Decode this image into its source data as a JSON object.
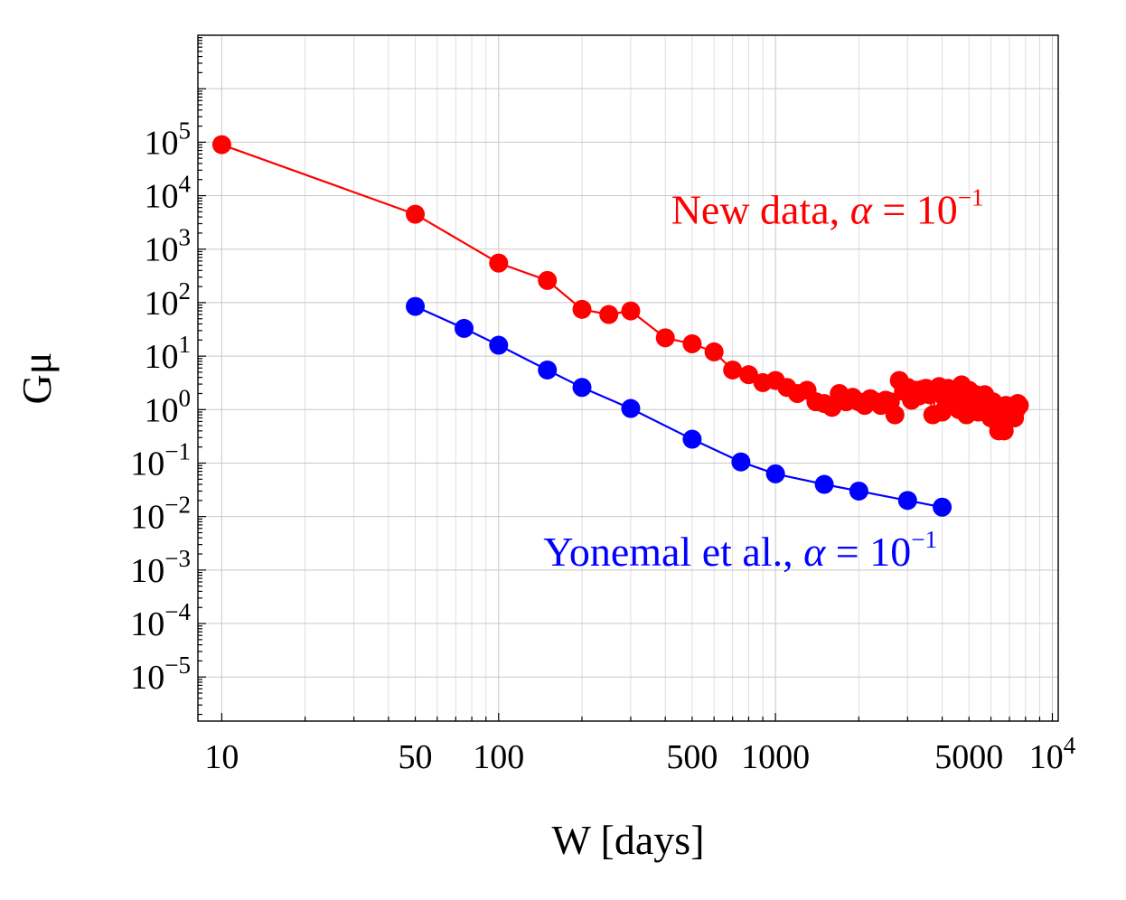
{
  "chart_data": {
    "type": "scatter",
    "title": "",
    "xlabel": "W [days]",
    "ylabel": "Gμ",
    "xscale": "log",
    "yscale": "log",
    "xlim": [
      8.2,
      10500
    ],
    "ylim": [
      1.5e-06,
      10000000
    ],
    "grid": true,
    "x_ticks": [
      {
        "value": 10,
        "label": "10"
      },
      {
        "value": 50,
        "label": "50"
      },
      {
        "value": 100,
        "label": "100"
      },
      {
        "value": 500,
        "label": "500"
      },
      {
        "value": 1000,
        "label": "1000"
      },
      {
        "value": 5000,
        "label": "5000"
      },
      {
        "value": 10000,
        "label": "10",
        "sup": "4"
      }
    ],
    "y_ticks": [
      {
        "value": 100000,
        "label": "10",
        "sup": "5"
      },
      {
        "value": 10000,
        "label": "10",
        "sup": "4"
      },
      {
        "value": 1000,
        "label": "10",
        "sup": "3"
      },
      {
        "value": 100,
        "label": "10",
        "sup": "2"
      },
      {
        "value": 10,
        "label": "10",
        "sup": "1"
      },
      {
        "value": 1,
        "label": "10",
        "sup": "0"
      },
      {
        "value": 0.1,
        "label": "10",
        "sup": "−1"
      },
      {
        "value": 0.01,
        "label": "10",
        "sup": "−2"
      },
      {
        "value": 0.001,
        "label": "10",
        "sup": "−3"
      },
      {
        "value": 0.0001,
        "label": "10",
        "sup": "−4"
      },
      {
        "value": 1e-05,
        "label": "10",
        "sup": "−5"
      }
    ],
    "series": [
      {
        "name": "New data",
        "color": "#ff0000",
        "annotation": {
          "text": "New data, ",
          "symbol": "α",
          "eq": " = 10",
          "sup": "−1",
          "anchor_x": 420,
          "anchor_y": 3000
        },
        "x": [
          10,
          50,
          100,
          150,
          200,
          250,
          300,
          400,
          500,
          600,
          700,
          800,
          900,
          1000,
          1100,
          1200,
          1300,
          1400,
          1500,
          1600,
          1700,
          1800,
          1900,
          2000,
          2100,
          2200,
          2300,
          2400,
          2500,
          2600,
          2700,
          2800,
          2900,
          3000,
          3100,
          3200,
          3300,
          3400,
          3500,
          3600,
          3700,
          3800,
          3900,
          4000,
          4100,
          4200,
          4300,
          4400,
          4500,
          4600,
          4700,
          4800,
          4900,
          5000,
          5100,
          5200,
          5300,
          5400,
          5500,
          5600,
          5700,
          5800,
          5900,
          6000,
          6100,
          6200,
          6300,
          6400,
          6500,
          6600,
          6700,
          6800,
          6900,
          7000,
          7100,
          7200,
          7300,
          7400,
          7500,
          7600
        ],
        "y": [
          90000,
          4500,
          550,
          260,
          75,
          60,
          70,
          22,
          17,
          12,
          5.5,
          4.5,
          3.2,
          3.5,
          2.6,
          2.0,
          2.3,
          1.4,
          1.3,
          1.1,
          2.0,
          1.4,
          1.7,
          1.4,
          1.2,
          1.6,
          1.4,
          1.2,
          1.5,
          1.4,
          0.8,
          3.5,
          2.2,
          2.6,
          1.5,
          2.3,
          1.8,
          2.4,
          2.5,
          1.9,
          0.8,
          2.2,
          2.7,
          0.9,
          1.6,
          2.5,
          1.2,
          1.9,
          2.2,
          1.0,
          2.9,
          1.7,
          0.8,
          2.3,
          1.6,
          1.2,
          1.9,
          0.9,
          1.6,
          1.3,
          1.9,
          1.0,
          0.9,
          0.7,
          1.4,
          1.1,
          0.6,
          0.4,
          1.0,
          0.7,
          0.4,
          1.2,
          0.9,
          0.8,
          1.0,
          1.1,
          0.7,
          1.0,
          1.3,
          1.2
        ]
      },
      {
        "name": "Yonemal et al.",
        "color": "#0000ff",
        "annotation": {
          "text": "Yonemal et al., ",
          "symbol": "α",
          "eq": " = 10",
          "sup": "−1",
          "anchor_x": 145,
          "anchor_y": 0.0012
        },
        "x": [
          50,
          75,
          100,
          150,
          200,
          300,
          500,
          750,
          1000,
          1500,
          2000,
          3000,
          4000
        ],
        "y": [
          85,
          33,
          16,
          5.5,
          2.6,
          1.05,
          0.28,
          0.105,
          0.063,
          0.04,
          0.03,
          0.02,
          0.015
        ]
      }
    ]
  }
}
